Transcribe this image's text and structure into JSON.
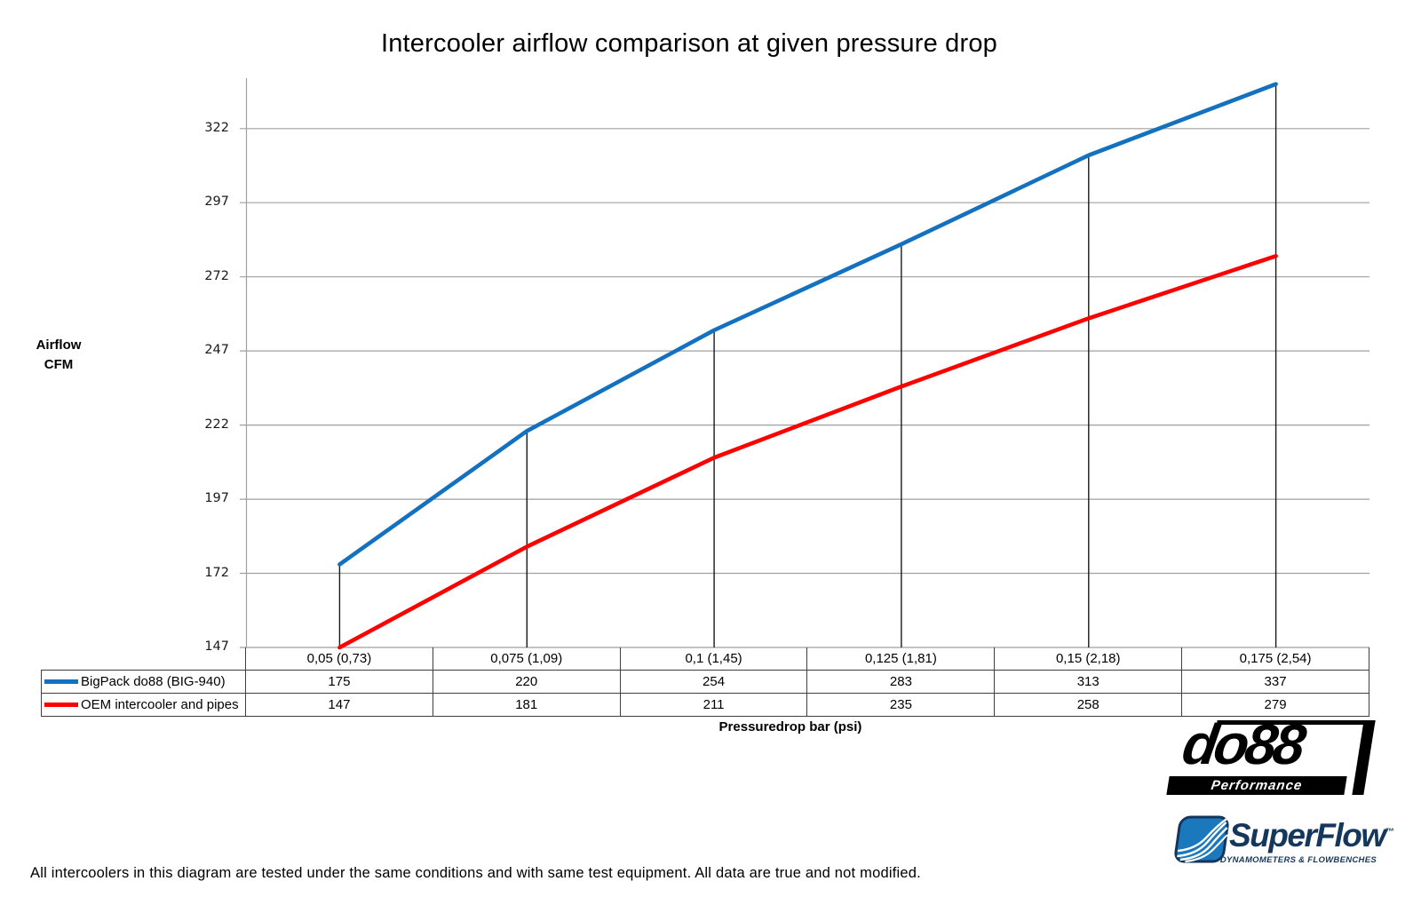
{
  "title": "Intercooler airflow comparison at given pressure drop",
  "footer": "All intercoolers in this diagram are tested under the same conditions and with same test equipment. All data are true and not modified.",
  "chart_data": {
    "type": "line",
    "title": "Intercooler airflow comparison at given pressure drop",
    "xlabel": "Pressuredrop bar (psi)",
    "ylabel": "Airflow CFM",
    "ylabel_lines": [
      "Airflow",
      "CFM"
    ],
    "categories": [
      "0,05 (0,73)",
      "0,075 (1,09)",
      "0,1 (1,45)",
      "0,125 (1,81)",
      "0,15 (2,18)",
      "0,175 (2,54)"
    ],
    "series": [
      {
        "name": "BigPack do88 (BIG-940)",
        "color": "#1471c0",
        "values": [
          175,
          220,
          254,
          283,
          313,
          337
        ]
      },
      {
        "name": "OEM intercooler and pipes",
        "color": "#fe0000",
        "values": [
          147,
          181,
          211,
          235,
          258,
          279
        ]
      }
    ],
    "yticks": [
      147,
      172,
      197,
      222,
      247,
      272,
      297,
      322
    ],
    "ylim": [
      147,
      339
    ],
    "grid": true,
    "legend_position": "data-table-left",
    "colors": {
      "gridline": "#9f9f9f",
      "axis": "#9f9f9f",
      "dropline": "#1a1a1a"
    }
  },
  "logos": {
    "do88": {
      "name": "do88",
      "tagline": "Performance"
    },
    "superflow": {
      "name": "SuperFlow",
      "trademark": "™",
      "tagline": "DYNAMOMETERS & FLOWBENCHES"
    }
  }
}
